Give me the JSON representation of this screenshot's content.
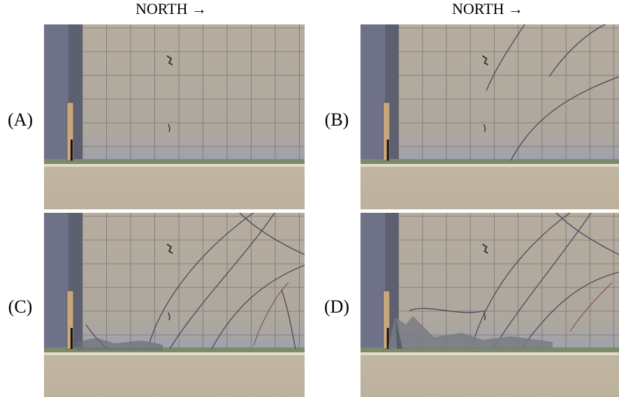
{
  "column_headings": [
    "NORTH →",
    "NORTH →"
  ],
  "panels": [
    {
      "label": "(A)"
    },
    {
      "label": "(B)"
    },
    {
      "label": "(C)"
    },
    {
      "label": "(D)"
    }
  ]
}
